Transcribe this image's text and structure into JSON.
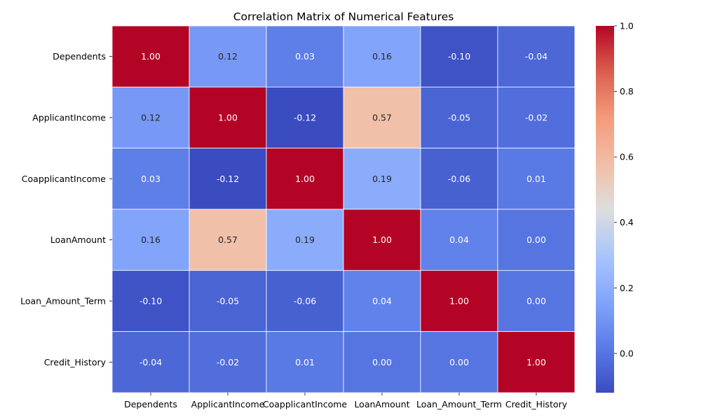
{
  "chart_data": {
    "type": "heatmap",
    "title": "Correlation Matrix of Numerical Features",
    "x_labels": [
      "Dependents",
      "ApplicantIncome",
      "CoapplicantIncome",
      "LoanAmount",
      "Loan_Amount_Term",
      "Credit_History"
    ],
    "y_labels": [
      "Dependents",
      "ApplicantIncome",
      "CoapplicantIncome",
      "LoanAmount",
      "Loan_Amount_Term",
      "Credit_History"
    ],
    "values": [
      [
        1.0,
        0.12,
        0.03,
        0.16,
        -0.1,
        -0.04
      ],
      [
        0.12,
        1.0,
        -0.12,
        0.57,
        -0.05,
        -0.02
      ],
      [
        0.03,
        -0.12,
        1.0,
        0.19,
        -0.06,
        0.01
      ],
      [
        0.16,
        0.57,
        0.19,
        1.0,
        0.04,
        -0.0
      ],
      [
        -0.1,
        -0.05,
        -0.06,
        0.04,
        1.0,
        -0.0
      ],
      [
        -0.04,
        -0.02,
        0.01,
        -0.0,
        -0.0,
        1.0
      ]
    ],
    "value_format": "0.00",
    "colormap": "coolwarm",
    "vmin": -0.12,
    "vmax": 1.0,
    "colorbar_ticks": [
      0.0,
      0.2,
      0.4,
      0.6,
      0.8,
      1.0
    ],
    "colorbar_tick_labels": [
      "0.0",
      "0.2",
      "0.4",
      "0.6",
      "0.8",
      "1.0"
    ],
    "cell_border_color": "#ffffff",
    "dark_text_color": "#262626",
    "light_text_color": "#ffffff"
  }
}
